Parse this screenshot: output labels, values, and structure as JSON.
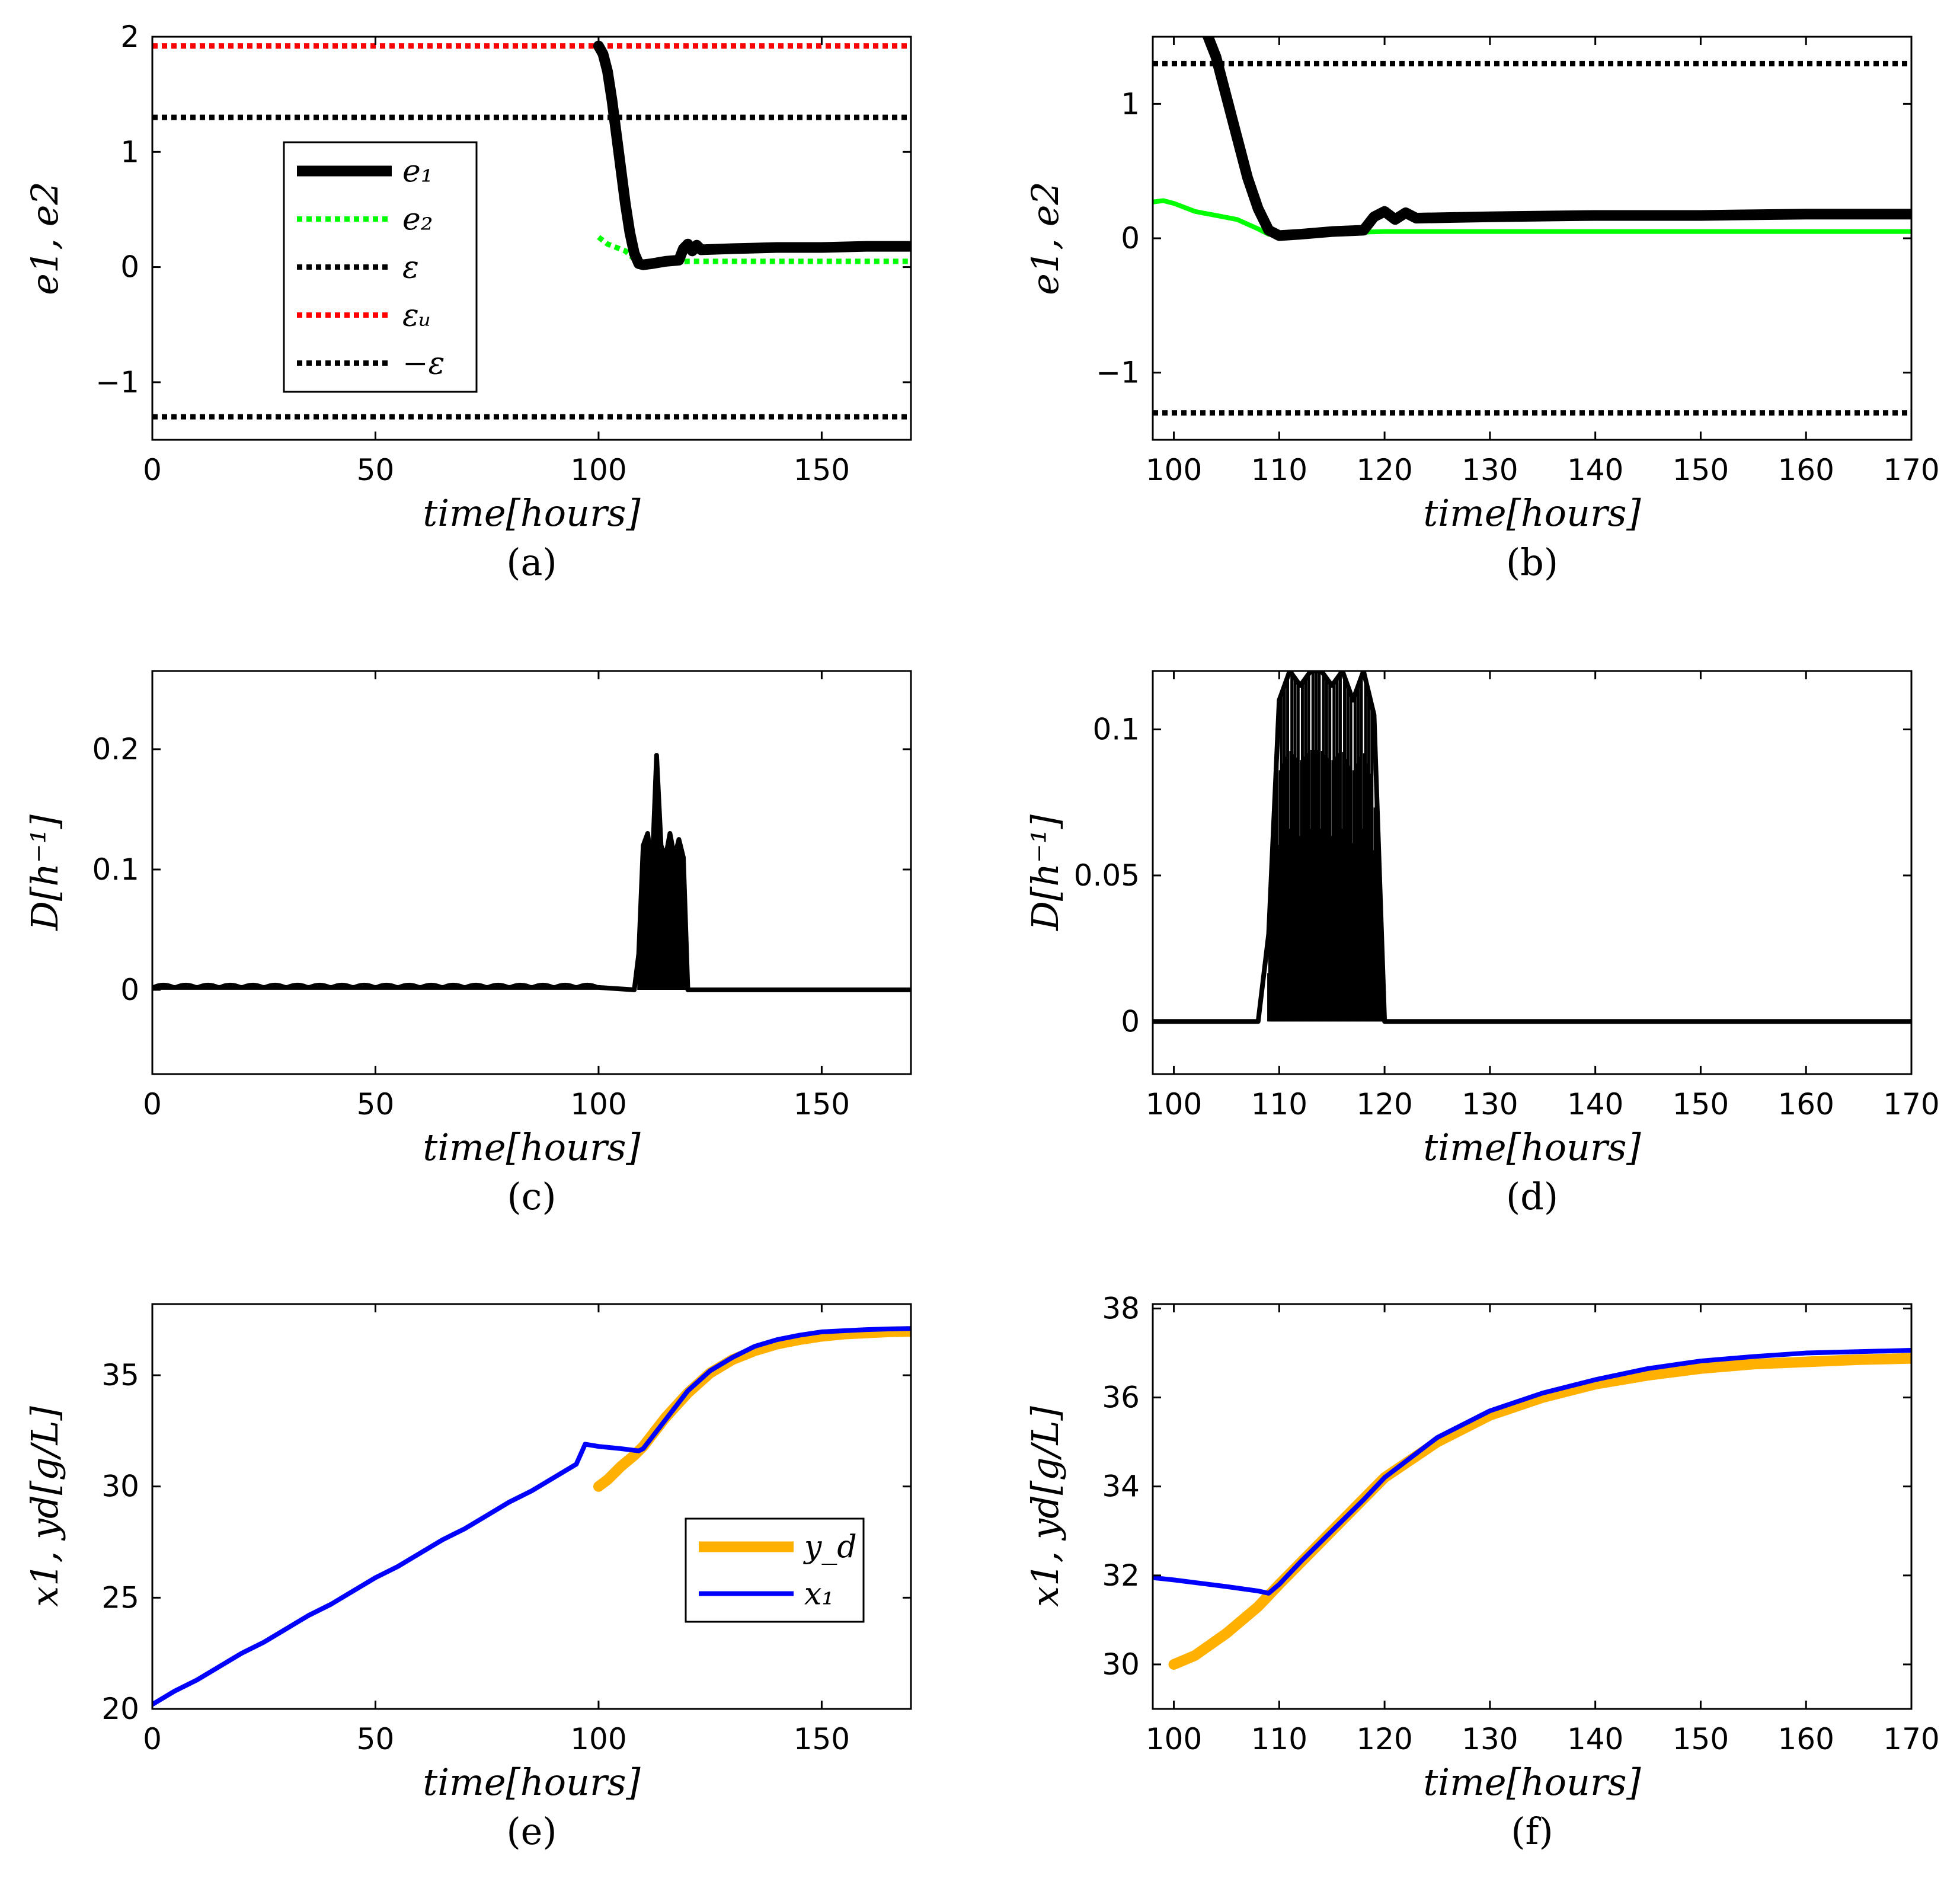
{
  "figure": {
    "description_caption_prefix": "",
    "panels_order": [
      "a",
      "b",
      "c",
      "d",
      "e",
      "f"
    ]
  },
  "chart_data": [
    {
      "id": "a",
      "type": "line",
      "caption": "(a)",
      "xlabel": "time[hours]",
      "ylabel": "e1, e2",
      "xlim": [
        0,
        170
      ],
      "ylim": [
        -1.5,
        2.0
      ],
      "xticks": [
        0,
        50,
        100,
        150
      ],
      "yticks": [
        -1,
        0,
        1,
        2
      ],
      "xtick_labels": [
        "0",
        "50",
        "100",
        "150"
      ],
      "ytick_labels": [
        "−1",
        "0",
        "1",
        "2"
      ],
      "legend": {
        "position": "center-left",
        "entries": [
          {
            "key": "e1",
            "label": "e₁"
          },
          {
            "key": "e2",
            "label": "e₂"
          },
          {
            "key": "eps",
            "label": "ε"
          },
          {
            "key": "epsu",
            "label": "εᵤ"
          },
          {
            "key": "neps",
            "label": "−ε"
          }
        ]
      },
      "series": [
        {
          "key": "e1",
          "name": "e1",
          "color": "#000000",
          "style": "solid-thick",
          "x": [
            100,
            101,
            102,
            103,
            104,
            105,
            106,
            107,
            108,
            109,
            110,
            112,
            115,
            118,
            119,
            120,
            121,
            122,
            123,
            130,
            140,
            150,
            160,
            170
          ],
          "y": [
            1.92,
            1.85,
            1.7,
            1.45,
            1.15,
            0.85,
            0.55,
            0.3,
            0.12,
            0.03,
            0.02,
            0.03,
            0.05,
            0.06,
            0.16,
            0.2,
            0.14,
            0.19,
            0.15,
            0.16,
            0.17,
            0.17,
            0.18,
            0.18
          ]
        },
        {
          "key": "e2",
          "name": "e2",
          "color": "#00ff00",
          "style": "dotted",
          "x": [
            100,
            102,
            104,
            106,
            108,
            109,
            110,
            112,
            115,
            120,
            130,
            140,
            150,
            160,
            170
          ],
          "y": [
            0.26,
            0.2,
            0.17,
            0.14,
            0.07,
            0.03,
            0.02,
            0.03,
            0.04,
            0.05,
            0.05,
            0.05,
            0.05,
            0.05,
            0.05
          ]
        },
        {
          "key": "eps",
          "name": "ε",
          "color": "#000000",
          "style": "dotted",
          "x": [
            0,
            170
          ],
          "y": [
            1.3,
            1.3
          ]
        },
        {
          "key": "epsu",
          "name": "εu",
          "color": "#ff0000",
          "style": "dotted",
          "x": [
            0,
            170
          ],
          "y": [
            1.92,
            1.92
          ]
        },
        {
          "key": "neps",
          "name": "−ε",
          "color": "#000000",
          "style": "dotted",
          "x": [
            0,
            170
          ],
          "y": [
            -1.3,
            -1.3
          ]
        }
      ]
    },
    {
      "id": "b",
      "type": "line",
      "caption": "(b)",
      "xlabel": "time[hours]",
      "ylabel": "e1, e2",
      "xlim": [
        98,
        170
      ],
      "ylim": [
        -1.5,
        1.5
      ],
      "xticks": [
        100,
        110,
        120,
        130,
        140,
        150,
        160,
        170
      ],
      "yticks": [
        -1,
        0,
        1
      ],
      "xtick_labels": [
        "100",
        "110",
        "120",
        "130",
        "140",
        "150",
        "160",
        "170"
      ],
      "ytick_labels": [
        "−1",
        "0",
        "1"
      ],
      "series": [
        {
          "key": "e1",
          "name": "e1",
          "color": "#000000",
          "style": "solid-thick",
          "x": [
            103,
            104,
            105,
            106,
            107,
            108,
            109,
            110,
            112,
            115,
            118,
            119,
            120,
            121,
            122,
            123,
            130,
            140,
            150,
            160,
            170
          ],
          "y": [
            1.55,
            1.35,
            1.05,
            0.75,
            0.45,
            0.22,
            0.06,
            0.02,
            0.03,
            0.05,
            0.06,
            0.16,
            0.2,
            0.14,
            0.19,
            0.15,
            0.16,
            0.17,
            0.17,
            0.18,
            0.18
          ]
        },
        {
          "key": "e2",
          "name": "e2",
          "color": "#00ff00",
          "style": "solid",
          "x": [
            98,
            99,
            100,
            102,
            104,
            106,
            108,
            109,
            110,
            112,
            115,
            120,
            130,
            140,
            150,
            160,
            170
          ],
          "y": [
            0.27,
            0.28,
            0.26,
            0.2,
            0.17,
            0.14,
            0.07,
            0.03,
            0.02,
            0.03,
            0.04,
            0.05,
            0.05,
            0.05,
            0.05,
            0.05,
            0.05
          ]
        },
        {
          "key": "eps",
          "name": "ε",
          "color": "#000000",
          "style": "dotted",
          "x": [
            98,
            170
          ],
          "y": [
            1.3,
            1.3
          ]
        },
        {
          "key": "neps",
          "name": "−ε",
          "color": "#000000",
          "style": "dotted",
          "x": [
            98,
            170
          ],
          "y": [
            -1.3,
            -1.3
          ]
        }
      ]
    },
    {
      "id": "c",
      "type": "line",
      "caption": "(c)",
      "xlabel": "time[hours]",
      "ylabel": "D[h⁻¹]",
      "xlim": [
        0,
        170
      ],
      "ylim": [
        -0.07,
        0.265
      ],
      "xticks": [
        0,
        50,
        100,
        150
      ],
      "yticks": [
        0,
        0.1,
        0.2
      ],
      "xtick_labels": [
        "0",
        "50",
        "100",
        "150"
      ],
      "ytick_labels": [
        "0",
        "0.1",
        "0.2"
      ],
      "series": [
        {
          "key": "D",
          "name": "D",
          "color": "#000000",
          "style": "solid",
          "x": [
            0,
            100,
            108,
            109,
            110,
            111,
            112,
            113,
            114,
            115,
            116,
            117,
            118,
            119,
            120,
            170
          ],
          "y": [
            0.002,
            0.002,
            0.0,
            0.03,
            0.12,
            0.13,
            0.1,
            0.195,
            0.12,
            0.11,
            0.13,
            0.11,
            0.125,
            0.11,
            0.0,
            0.0
          ]
        }
      ]
    },
    {
      "id": "d",
      "type": "line",
      "caption": "(d)",
      "xlabel": "time[hours]",
      "ylabel": "D[h⁻¹]",
      "xlim": [
        98,
        170
      ],
      "ylim": [
        -0.018,
        0.12
      ],
      "xticks": [
        100,
        110,
        120,
        130,
        140,
        150,
        160,
        170
      ],
      "yticks": [
        0,
        0.05,
        0.1
      ],
      "xtick_labels": [
        "100",
        "110",
        "120",
        "130",
        "140",
        "150",
        "160",
        "170"
      ],
      "ytick_labels": [
        "0",
        "0.05",
        "0.1"
      ],
      "series": [
        {
          "key": "D",
          "name": "D",
          "color": "#000000",
          "style": "solid",
          "x": [
            98,
            108,
            109,
            110,
            111,
            112,
            113,
            114,
            115,
            116,
            117,
            118,
            119,
            120,
            170
          ],
          "y": [
            0,
            0,
            0.03,
            0.11,
            0.12,
            0.115,
            0.12,
            0.12,
            0.115,
            0.12,
            0.11,
            0.12,
            0.105,
            0,
            0
          ]
        }
      ]
    },
    {
      "id": "e",
      "type": "line",
      "caption": "(e)",
      "xlabel": "time[hours]",
      "ylabel": "x1, yd[g/L]",
      "xlim": [
        0,
        170
      ],
      "ylim": [
        20,
        38.2
      ],
      "xticks": [
        0,
        50,
        100,
        150
      ],
      "yticks": [
        20,
        25,
        30,
        35
      ],
      "xtick_labels": [
        "0",
        "50",
        "100",
        "150"
      ],
      "ytick_labels": [
        "20",
        "25",
        "30",
        "35"
      ],
      "legend": {
        "position": "bottom-right",
        "entries": [
          {
            "key": "yd",
            "label": "y_d"
          },
          {
            "key": "x1",
            "label": "x₁"
          }
        ]
      },
      "series": [
        {
          "key": "yd",
          "name": "yd",
          "color": "#ffb000",
          "style": "solid-thick",
          "x": [
            100,
            102,
            105,
            108,
            110,
            115,
            120,
            125,
            130,
            135,
            140,
            145,
            150,
            155,
            160,
            165,
            170
          ],
          "y": [
            30.0,
            30.3,
            30.9,
            31.4,
            31.8,
            33.1,
            34.2,
            35.1,
            35.7,
            36.1,
            36.4,
            36.6,
            36.75,
            36.85,
            36.9,
            36.95,
            36.97
          ]
        },
        {
          "key": "x1",
          "name": "x1",
          "color": "#0000ff",
          "style": "solid",
          "x": [
            0,
            5,
            10,
            15,
            20,
            25,
            30,
            35,
            40,
            45,
            50,
            55,
            60,
            65,
            70,
            75,
            80,
            85,
            90,
            95,
            97,
            100,
            105,
            109,
            110,
            115,
            120,
            125,
            130,
            135,
            140,
            145,
            150,
            155,
            160,
            165,
            170
          ],
          "y": [
            20.2,
            20.8,
            21.3,
            21.9,
            22.5,
            23.0,
            23.6,
            24.2,
            24.7,
            25.3,
            25.9,
            26.4,
            27.0,
            27.6,
            28.1,
            28.7,
            29.3,
            29.8,
            30.4,
            31.0,
            31.9,
            31.8,
            31.7,
            31.6,
            31.7,
            33.0,
            34.3,
            35.2,
            35.8,
            36.3,
            36.6,
            36.8,
            36.95,
            37.0,
            37.05,
            37.08,
            37.1
          ]
        }
      ]
    },
    {
      "id": "f",
      "type": "line",
      "caption": "(f)",
      "xlabel": "time[hours]",
      "ylabel": "x1, yd[g/L]",
      "xlim": [
        98,
        170
      ],
      "ylim": [
        29.0,
        38.1
      ],
      "xticks": [
        100,
        110,
        120,
        130,
        140,
        150,
        160,
        170
      ],
      "yticks": [
        30,
        32,
        34,
        36,
        38
      ],
      "xtick_labels": [
        "100",
        "110",
        "120",
        "130",
        "140",
        "150",
        "160",
        "170"
      ],
      "ytick_labels": [
        "30",
        "32",
        "34",
        "36",
        "38"
      ],
      "series": [
        {
          "key": "yd",
          "name": "yd",
          "color": "#ffb000",
          "style": "solid-thick",
          "x": [
            100,
            102,
            105,
            108,
            110,
            115,
            120,
            125,
            130,
            135,
            140,
            145,
            150,
            155,
            160,
            165,
            170
          ],
          "y": [
            30.0,
            30.2,
            30.7,
            31.3,
            31.8,
            33.0,
            34.2,
            35.0,
            35.6,
            36.0,
            36.3,
            36.5,
            36.65,
            36.75,
            36.8,
            36.85,
            36.88
          ]
        },
        {
          "key": "x1",
          "name": "x1",
          "color": "#0000ff",
          "style": "solid",
          "x": [
            98,
            100,
            105,
            108,
            109,
            110,
            112,
            115,
            118,
            120,
            125,
            130,
            135,
            140,
            145,
            150,
            155,
            160,
            165,
            170
          ],
          "y": [
            31.95,
            31.9,
            31.75,
            31.65,
            31.6,
            31.8,
            32.3,
            33.0,
            33.7,
            34.2,
            35.1,
            35.7,
            36.1,
            36.4,
            36.65,
            36.82,
            36.92,
            37.0,
            37.03,
            37.06
          ]
        }
      ]
    }
  ]
}
